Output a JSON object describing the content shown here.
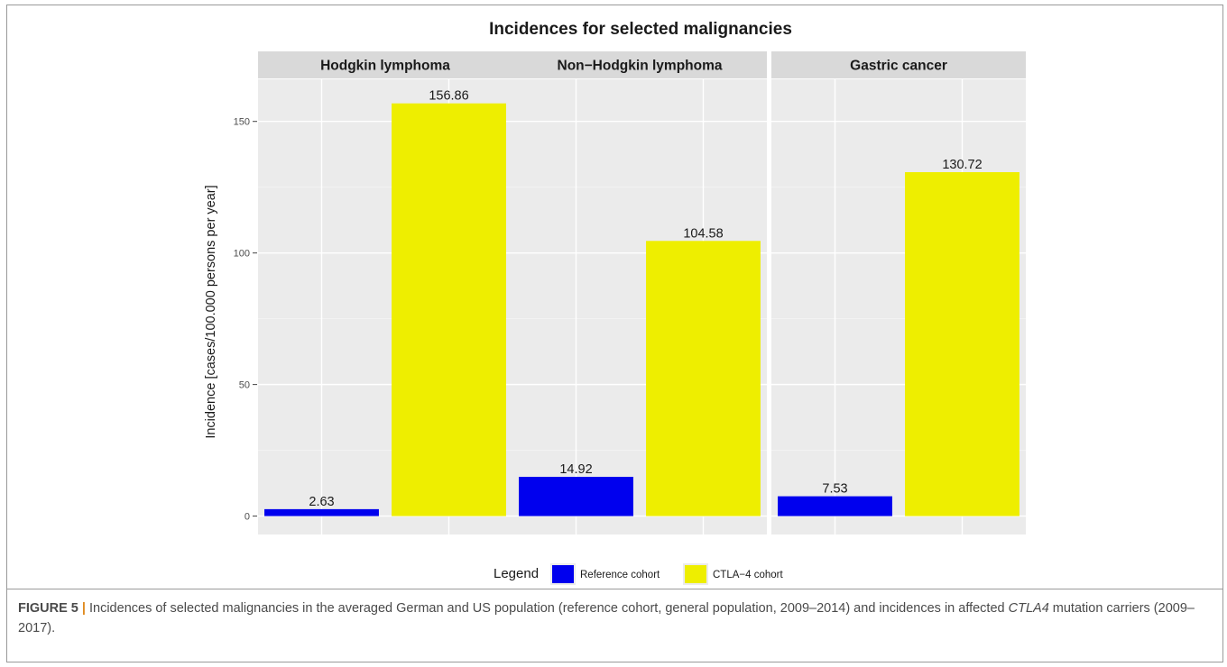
{
  "chart_data": {
    "type": "bar",
    "title": "Incidences for selected malignancies",
    "ylabel": "Incidence [cases/100.000 persons per year]",
    "xlabel": "",
    "ylim": [
      -7,
      166
    ],
    "yticks": [
      0,
      50,
      100,
      150
    ],
    "panels": [
      "Hodgkin lymphoma",
      "Non−Hodgkin lymphoma",
      "Gastric cancer"
    ],
    "series": [
      {
        "name": "Reference cohort",
        "color": "#0000ee",
        "values": [
          2.63,
          14.92,
          7.53
        ],
        "labels": [
          "2.63",
          "14.92",
          "7.53"
        ]
      },
      {
        "name": "CTLA−4 cohort",
        "color": "#eeee00",
        "values": [
          156.86,
          104.58,
          130.72
        ],
        "labels": [
          "156.86",
          "104.58",
          "130.72"
        ]
      }
    ],
    "legend": {
      "title": "Legend",
      "position": "bottom"
    },
    "grid": true,
    "panel_background": "#ebebeb",
    "strip_background": "#d9d9d9"
  },
  "caption": {
    "label": "FIGURE 5",
    "separator": "|",
    "text_1": " Incidences of selected malignancies in the averaged German and US population (reference cohort, general population, 2009–2014) and incidences in affected ",
    "gene": "CTLA4",
    "text_2": " mutation carriers (2009–2017)."
  }
}
